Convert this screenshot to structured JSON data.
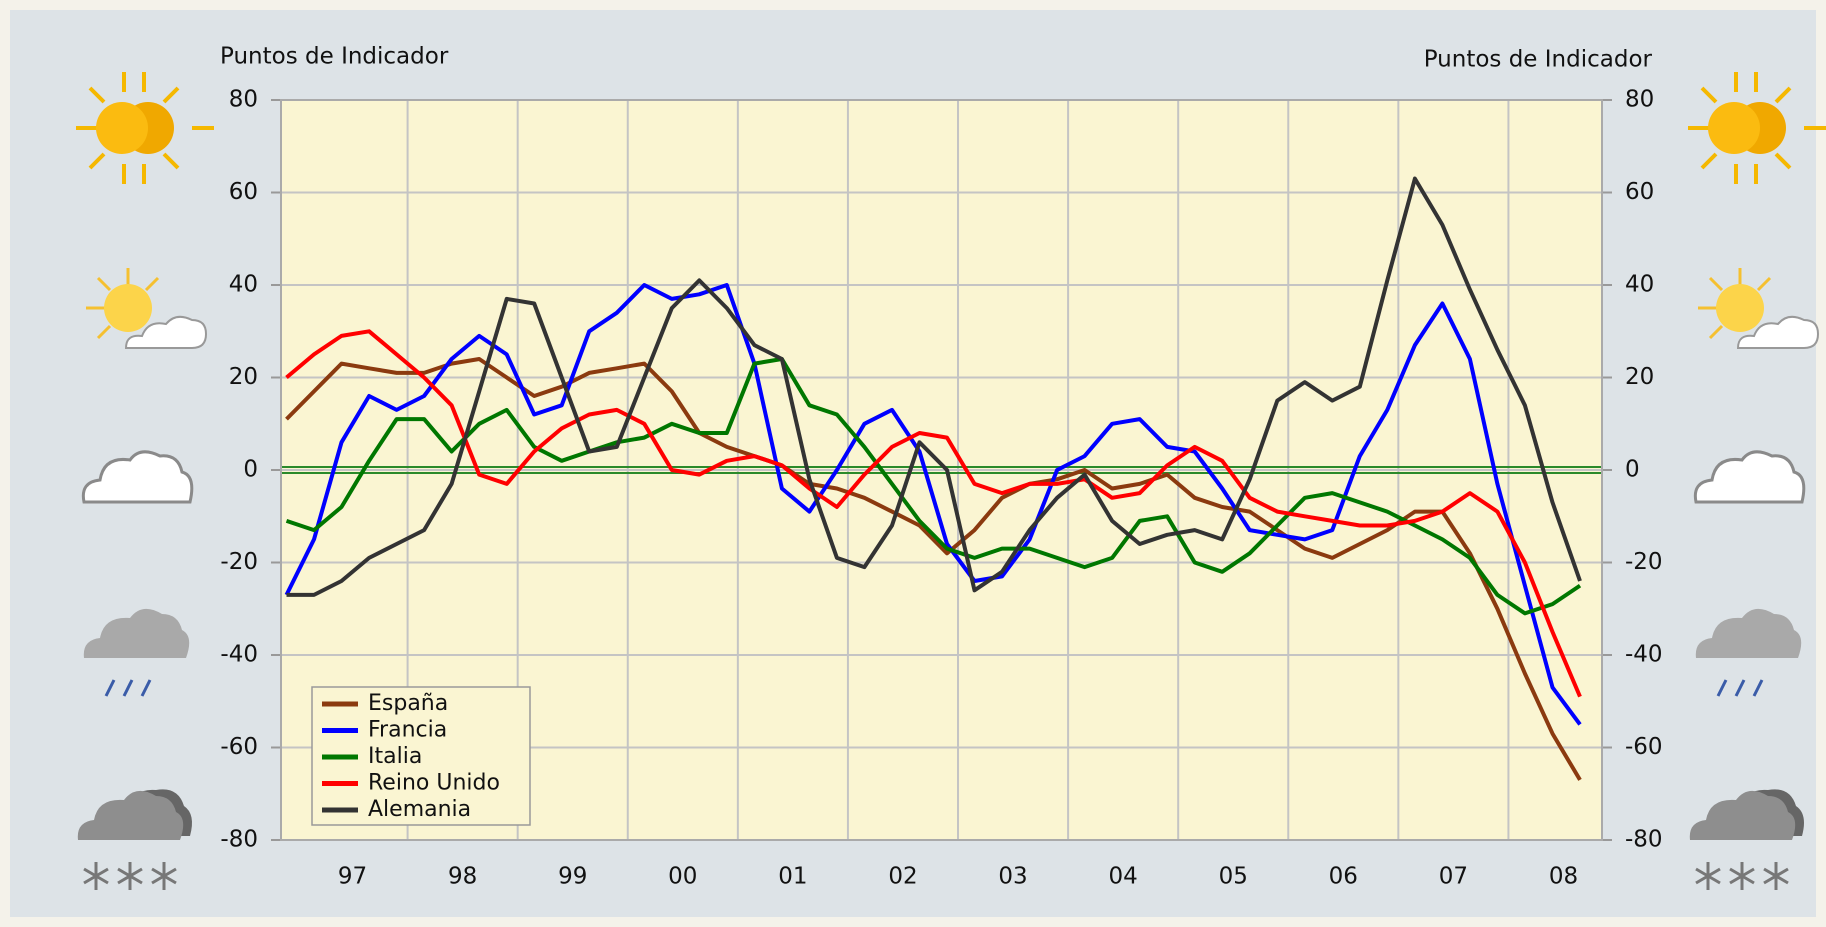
{
  "chart_data": {
    "type": "line",
    "y_label": "Puntos de Indicador",
    "y2_label": "Puntos de Indicador",
    "x": [
      1996.4,
      1996.65,
      1996.9,
      1997.15,
      1997.4,
      1997.65,
      1997.9,
      1998.15,
      1998.4,
      1998.65,
      1998.9,
      1999.15,
      1999.4,
      1999.65,
      1999.9,
      2000.15,
      2000.4,
      2000.65,
      2000.9,
      2001.15,
      2001.4,
      2001.65,
      2001.9,
      2002.15,
      2002.4,
      2002.65,
      2002.9,
      2003.15,
      2003.4,
      2003.65,
      2003.9,
      2004.15,
      2004.4,
      2004.65,
      2004.9,
      2005.15,
      2005.4,
      2005.65,
      2005.9,
      2006.15,
      2006.4,
      2006.65,
      2006.9,
      2007.15,
      2007.4,
      2007.65,
      2007.9,
      2008.15
    ],
    "series": [
      {
        "name": "España",
        "color": "#8b3a0f",
        "values": [
          11,
          17,
          23,
          22,
          21,
          21,
          23,
          24,
          20,
          16,
          18,
          21,
          22,
          23,
          17,
          8,
          5,
          3,
          1,
          -3,
          -4,
          -6,
          -9,
          -12,
          -18,
          -13,
          -6,
          -3,
          -2,
          0,
          -4,
          -3,
          -1,
          -6,
          -8,
          -9,
          -13,
          -17,
          -19,
          -16,
          -13,
          -9,
          -9,
          -18,
          -30,
          -44,
          -57,
          -67
        ]
      },
      {
        "name": "Francia",
        "color": "#0000ff",
        "values": [
          -27,
          -15,
          6,
          16,
          13,
          16,
          24,
          29,
          25,
          12,
          14,
          30,
          34,
          40,
          37,
          38,
          40,
          23,
          -4,
          -9,
          0,
          10,
          13,
          4,
          -16,
          -24,
          -23,
          -15,
          0,
          3,
          10,
          11,
          5,
          4,
          -4,
          -13,
          -14,
          -15,
          -13,
          3,
          13,
          27,
          36,
          24,
          -3,
          -25,
          -47,
          -55
        ]
      },
      {
        "name": "Italia",
        "color": "#007700",
        "values": [
          -11,
          -13,
          -8,
          2,
          11,
          11,
          4,
          10,
          13,
          5,
          2,
          4,
          6,
          7,
          10,
          8,
          8,
          23,
          24,
          14,
          12,
          5,
          -3,
          -11,
          -17,
          -19,
          -17,
          -17,
          -19,
          -21,
          -19,
          -11,
          -10,
          -20,
          -22,
          -18,
          -12,
          -6,
          -5,
          -7,
          -9,
          -12,
          -15,
          -19,
          -27,
          -31,
          -29,
          -25
        ]
      },
      {
        "name": "Reino Unido",
        "color": "#ff0000",
        "values": [
          20,
          25,
          29,
          30,
          25,
          20,
          14,
          -1,
          -3,
          4,
          9,
          12,
          13,
          10,
          0,
          -1,
          2,
          3,
          1,
          -4,
          -8,
          -1,
          5,
          8,
          7,
          -3,
          -5,
          -3,
          -3,
          -2,
          -6,
          -5,
          1,
          5,
          2,
          -6,
          -9,
          -10,
          -11,
          -12,
          -12,
          -11,
          -9,
          -5,
          -9,
          -20,
          -35,
          -49
        ]
      },
      {
        "name": "Alemania",
        "color": "#333333",
        "values": [
          -27,
          -27,
          -24,
          -19,
          -16,
          -13,
          -3,
          17,
          37,
          36,
          20,
          4,
          5,
          20,
          35,
          41,
          35,
          27,
          24,
          -2,
          -19,
          -21,
          -12,
          6,
          0,
          -26,
          -22,
          -13,
          -6,
          -1,
          -11,
          -16,
          -14,
          -13,
          -15,
          -2,
          15,
          19,
          15,
          18,
          41,
          63,
          53,
          39,
          26,
          14,
          -7,
          -24
        ]
      }
    ],
    "xlim": [
      1996.35,
      2008.35
    ],
    "xticks": [
      {
        "value": 1997,
        "label": "97"
      },
      {
        "value": 1998,
        "label": "98"
      },
      {
        "value": 1999,
        "label": "99"
      },
      {
        "value": 2000,
        "label": "00"
      },
      {
        "value": 2001,
        "label": "01"
      },
      {
        "value": 2002,
        "label": "02"
      },
      {
        "value": 2003,
        "label": "03"
      },
      {
        "value": 2004,
        "label": "04"
      },
      {
        "value": 2005,
        "label": "05"
      },
      {
        "value": 2006,
        "label": "06"
      },
      {
        "value": 2007,
        "label": "07"
      },
      {
        "value": 2008,
        "label": "08"
      }
    ],
    "ylim": [
      -80,
      80
    ],
    "yticks": [
      -80,
      -60,
      -40,
      -20,
      0,
      20,
      40,
      60,
      80
    ],
    "y2lim": [
      -80,
      80
    ],
    "y2ticks": [
      -80,
      -60,
      -40,
      -20,
      0,
      20,
      40,
      60,
      80
    ],
    "grid": true,
    "legend": "lower left"
  }
}
